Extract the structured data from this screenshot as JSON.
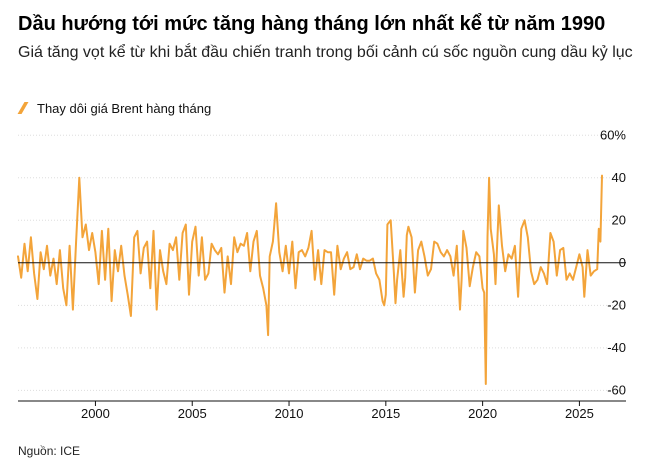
{
  "header": {
    "title": "Dầu hướng tới mức tăng hàng tháng lớn nhất kể từ năm 1990",
    "subtitle": "Giá tăng vọt kể từ khi bắt đầu chiến tranh trong bối cảnh cú sốc nguồn cung dầu kỷ lục"
  },
  "legend": {
    "label": "Thay dôi giá Brent hàng tháng"
  },
  "source": "Nguồn: ICE",
  "colors": {
    "series": "#f3a43a",
    "zero_line": "#111111",
    "grid": "#dddddd"
  },
  "chart_data": {
    "type": "line",
    "title": "Dầu hướng tới mức tăng hàng tháng lớn nhất kể từ năm 1990",
    "subtitle": "Giá tăng vọt kể từ khi bắt đầu chiến tranh trong bối cảnh cú sốc nguồn cung dầu kỷ lục",
    "xlabel": "",
    "ylabel": "",
    "x_range": [
      "1996-01",
      "2026-03"
    ],
    "ylim": [
      -65,
      62
    ],
    "x_ticks": [
      "2000",
      "2005",
      "2010",
      "2015",
      "2020",
      "2025"
    ],
    "y_ticks": [
      {
        "value": 60,
        "label": "60%"
      },
      {
        "value": 40,
        "label": "40"
      },
      {
        "value": 20,
        "label": "20"
      },
      {
        "value": 0,
        "label": "0"
      },
      {
        "value": -20,
        "label": "-20"
      },
      {
        "value": -40,
        "label": "-40"
      },
      {
        "value": -60,
        "label": "-60"
      }
    ],
    "grid": true,
    "legend_position": "top-left",
    "series": [
      {
        "name": "Thay dôi giá Brent hàng tháng",
        "points": [
          [
            "1996-01",
            3
          ],
          [
            "1996-03",
            -7
          ],
          [
            "1996-05",
            9
          ],
          [
            "1996-07",
            -4
          ],
          [
            "1996-09",
            12
          ],
          [
            "1996-11",
            -5
          ],
          [
            "1997-01",
            -17
          ],
          [
            "1997-03",
            5
          ],
          [
            "1997-05",
            -3
          ],
          [
            "1997-07",
            8
          ],
          [
            "1997-09",
            -6
          ],
          [
            "1997-11",
            2
          ],
          [
            "1998-01",
            -10
          ],
          [
            "1998-03",
            6
          ],
          [
            "1998-05",
            -12
          ],
          [
            "1998-07",
            -20
          ],
          [
            "1998-09",
            8
          ],
          [
            "1998-11",
            -22
          ],
          [
            "1999-01",
            10
          ],
          [
            "1999-03",
            40
          ],
          [
            "1999-05",
            12
          ],
          [
            "1999-07",
            18
          ],
          [
            "1999-09",
            6
          ],
          [
            "1999-11",
            14
          ],
          [
            "2000-01",
            5
          ],
          [
            "2000-03",
            -10
          ],
          [
            "2000-05",
            15
          ],
          [
            "2000-07",
            -8
          ],
          [
            "2000-09",
            16
          ],
          [
            "2000-11",
            -18
          ],
          [
            "2001-01",
            6
          ],
          [
            "2001-03",
            -4
          ],
          [
            "2001-05",
            8
          ],
          [
            "2001-07",
            -6
          ],
          [
            "2001-09",
            -15
          ],
          [
            "2001-11",
            -25
          ],
          [
            "2002-01",
            12
          ],
          [
            "2002-03",
            15
          ],
          [
            "2002-05",
            -5
          ],
          [
            "2002-07",
            7
          ],
          [
            "2002-09",
            10
          ],
          [
            "2002-11",
            -12
          ],
          [
            "2003-01",
            15
          ],
          [
            "2003-03",
            -22
          ],
          [
            "2003-05",
            6
          ],
          [
            "2003-07",
            -4
          ],
          [
            "2003-09",
            -10
          ],
          [
            "2003-11",
            9
          ],
          [
            "2004-01",
            6
          ],
          [
            "2004-03",
            12
          ],
          [
            "2004-05",
            -8
          ],
          [
            "2004-07",
            14
          ],
          [
            "2004-09",
            18
          ],
          [
            "2004-11",
            -15
          ],
          [
            "2005-01",
            10
          ],
          [
            "2005-03",
            17
          ],
          [
            "2005-05",
            -6
          ],
          [
            "2005-07",
            12
          ],
          [
            "2005-09",
            -8
          ],
          [
            "2005-11",
            -5
          ],
          [
            "2006-01",
            9
          ],
          [
            "2006-03",
            6
          ],
          [
            "2006-05",
            4
          ],
          [
            "2006-07",
            7
          ],
          [
            "2006-09",
            -14
          ],
          [
            "2006-11",
            3
          ],
          [
            "2007-01",
            -10
          ],
          [
            "2007-03",
            12
          ],
          [
            "2007-05",
            5
          ],
          [
            "2007-07",
            9
          ],
          [
            "2007-09",
            8
          ],
          [
            "2007-11",
            14
          ],
          [
            "2008-01",
            -4
          ],
          [
            "2008-03",
            10
          ],
          [
            "2008-05",
            15
          ],
          [
            "2008-07",
            -6
          ],
          [
            "2008-09",
            -12
          ],
          [
            "2008-11",
            -20
          ],
          [
            "2008-12",
            -34
          ],
          [
            "2009-01",
            3
          ],
          [
            "2009-03",
            10
          ],
          [
            "2009-05",
            28
          ],
          [
            "2009-07",
            5
          ],
          [
            "2009-09",
            -4
          ],
          [
            "2009-11",
            8
          ],
          [
            "2010-01",
            -5
          ],
          [
            "2010-03",
            10
          ],
          [
            "2010-05",
            -12
          ],
          [
            "2010-07",
            5
          ],
          [
            "2010-09",
            6
          ],
          [
            "2010-11",
            3
          ],
          [
            "2011-01",
            7
          ],
          [
            "2011-03",
            15
          ],
          [
            "2011-05",
            -8
          ],
          [
            "2011-07",
            6
          ],
          [
            "2011-09",
            -10
          ],
          [
            "2011-11",
            6
          ],
          [
            "2012-01",
            5
          ],
          [
            "2012-03",
            5
          ],
          [
            "2012-05",
            -15
          ],
          [
            "2012-07",
            8
          ],
          [
            "2012-09",
            -3
          ],
          [
            "2012-11",
            2
          ],
          [
            "2013-01",
            5
          ],
          [
            "2013-03",
            -3
          ],
          [
            "2013-05",
            -2
          ],
          [
            "2013-07",
            4
          ],
          [
            "2013-09",
            -3
          ],
          [
            "2013-11",
            2
          ],
          [
            "2014-01",
            1
          ],
          [
            "2014-03",
            1
          ],
          [
            "2014-05",
            2
          ],
          [
            "2014-07",
            -5
          ],
          [
            "2014-09",
            -8
          ],
          [
            "2014-11",
            -18
          ],
          [
            "2014-12",
            -20
          ],
          [
            "2015-01",
            -15
          ],
          [
            "2015-02",
            18
          ],
          [
            "2015-04",
            20
          ],
          [
            "2015-06",
            -5
          ],
          [
            "2015-07",
            -19
          ],
          [
            "2015-08",
            -8
          ],
          [
            "2015-10",
            6
          ],
          [
            "2015-12",
            -16
          ],
          [
            "2016-01",
            -7
          ],
          [
            "2016-02",
            13
          ],
          [
            "2016-03",
            17
          ],
          [
            "2016-05",
            12
          ],
          [
            "2016-07",
            -14
          ],
          [
            "2016-09",
            6
          ],
          [
            "2016-11",
            10
          ],
          [
            "2017-01",
            3
          ],
          [
            "2017-03",
            -6
          ],
          [
            "2017-05",
            -3
          ],
          [
            "2017-07",
            10
          ],
          [
            "2017-09",
            9
          ],
          [
            "2017-11",
            5
          ],
          [
            "2018-01",
            3
          ],
          [
            "2018-03",
            6
          ],
          [
            "2018-05",
            3
          ],
          [
            "2018-07",
            -6
          ],
          [
            "2018-09",
            8
          ],
          [
            "2018-11",
            -22
          ],
          [
            "2018-12",
            -8
          ],
          [
            "2019-01",
            15
          ],
          [
            "2019-03",
            7
          ],
          [
            "2019-05",
            -11
          ],
          [
            "2019-07",
            -2
          ],
          [
            "2019-09",
            5
          ],
          [
            "2019-11",
            3
          ],
          [
            "2020-01",
            -12
          ],
          [
            "2020-02",
            -14
          ],
          [
            "2020-03",
            -57
          ],
          [
            "2020-04",
            12
          ],
          [
            "2020-05",
            40
          ],
          [
            "2020-06",
            16
          ],
          [
            "2020-08",
            4
          ],
          [
            "2020-09",
            -10
          ],
          [
            "2020-11",
            27
          ],
          [
            "2021-01",
            8
          ],
          [
            "2021-03",
            -4
          ],
          [
            "2021-05",
            4
          ],
          [
            "2021-07",
            2
          ],
          [
            "2021-09",
            8
          ],
          [
            "2021-11",
            -16
          ],
          [
            "2022-01",
            16
          ],
          [
            "2022-03",
            20
          ],
          [
            "2022-05",
            12
          ],
          [
            "2022-07",
            -4
          ],
          [
            "2022-09",
            -10
          ],
          [
            "2022-11",
            -8
          ],
          [
            "2023-01",
            -2
          ],
          [
            "2023-03",
            -5
          ],
          [
            "2023-05",
            -10
          ],
          [
            "2023-07",
            14
          ],
          [
            "2023-09",
            10
          ],
          [
            "2023-11",
            -6
          ],
          [
            "2024-01",
            6
          ],
          [
            "2024-03",
            7
          ],
          [
            "2024-05",
            -8
          ],
          [
            "2024-07",
            -5
          ],
          [
            "2024-09",
            -8
          ],
          [
            "2024-11",
            -2
          ],
          [
            "2025-01",
            4
          ],
          [
            "2025-03",
            -2
          ],
          [
            "2025-04",
            -16
          ],
          [
            "2025-06",
            6
          ],
          [
            "2025-08",
            -6
          ],
          [
            "2025-10",
            -4
          ],
          [
            "2025-12",
            -3
          ],
          [
            "2026-01",
            16
          ],
          [
            "2026-02",
            10
          ],
          [
            "2026-03",
            41
          ]
        ]
      }
    ]
  }
}
